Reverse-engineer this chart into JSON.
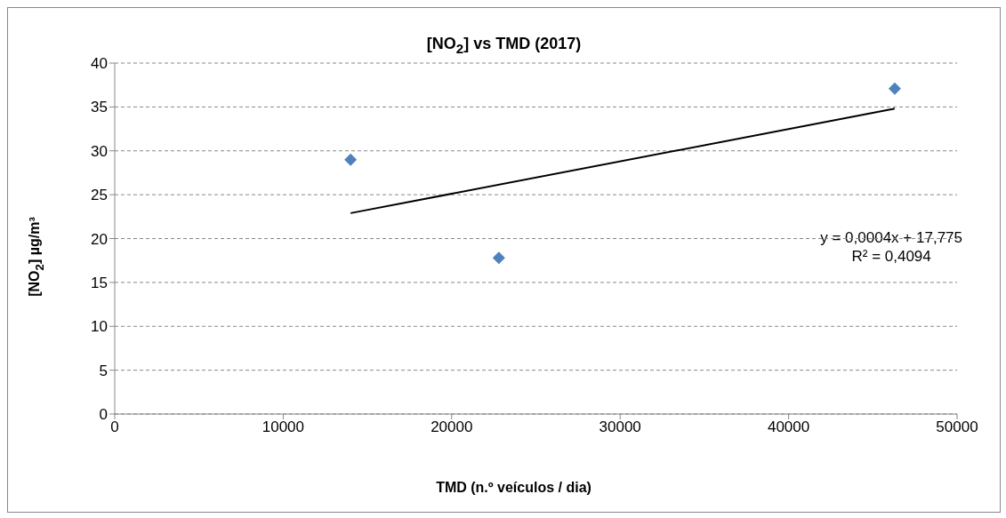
{
  "chart_data": {
    "type": "scatter",
    "title": "[NO$_{2}$] vs TMD (2017)",
    "xlabel": "TMD (n.º veículos / dia)",
    "ylabel": "[NO$_{2}$] µg/m³",
    "series": [
      {
        "color": "#4f81bd",
        "marker": "diamond",
        "x": [
          14000,
          22800,
          46300
        ],
        "values": [
          29,
          17.8,
          37.1
        ]
      },
      {
        "type": "line",
        "color": "#000000",
        "marker": "none",
        "line_style": "solid",
        "x": [
          14000,
          46300
        ],
        "values": [
          22.9,
          34.8
        ]
      }
    ],
    "xlim": [
      0,
      50000
    ],
    "xticks": [
      0,
      10000,
      20000,
      30000,
      40000,
      50000
    ],
    "ylim": [
      0,
      40
    ],
    "yticks": [
      0,
      5,
      10,
      15,
      20,
      25,
      30,
      35,
      40
    ],
    "grid": "y",
    "annotations": [
      "y = 0,0004x + 17,775",
      "R² = 0,4094"
    ]
  }
}
